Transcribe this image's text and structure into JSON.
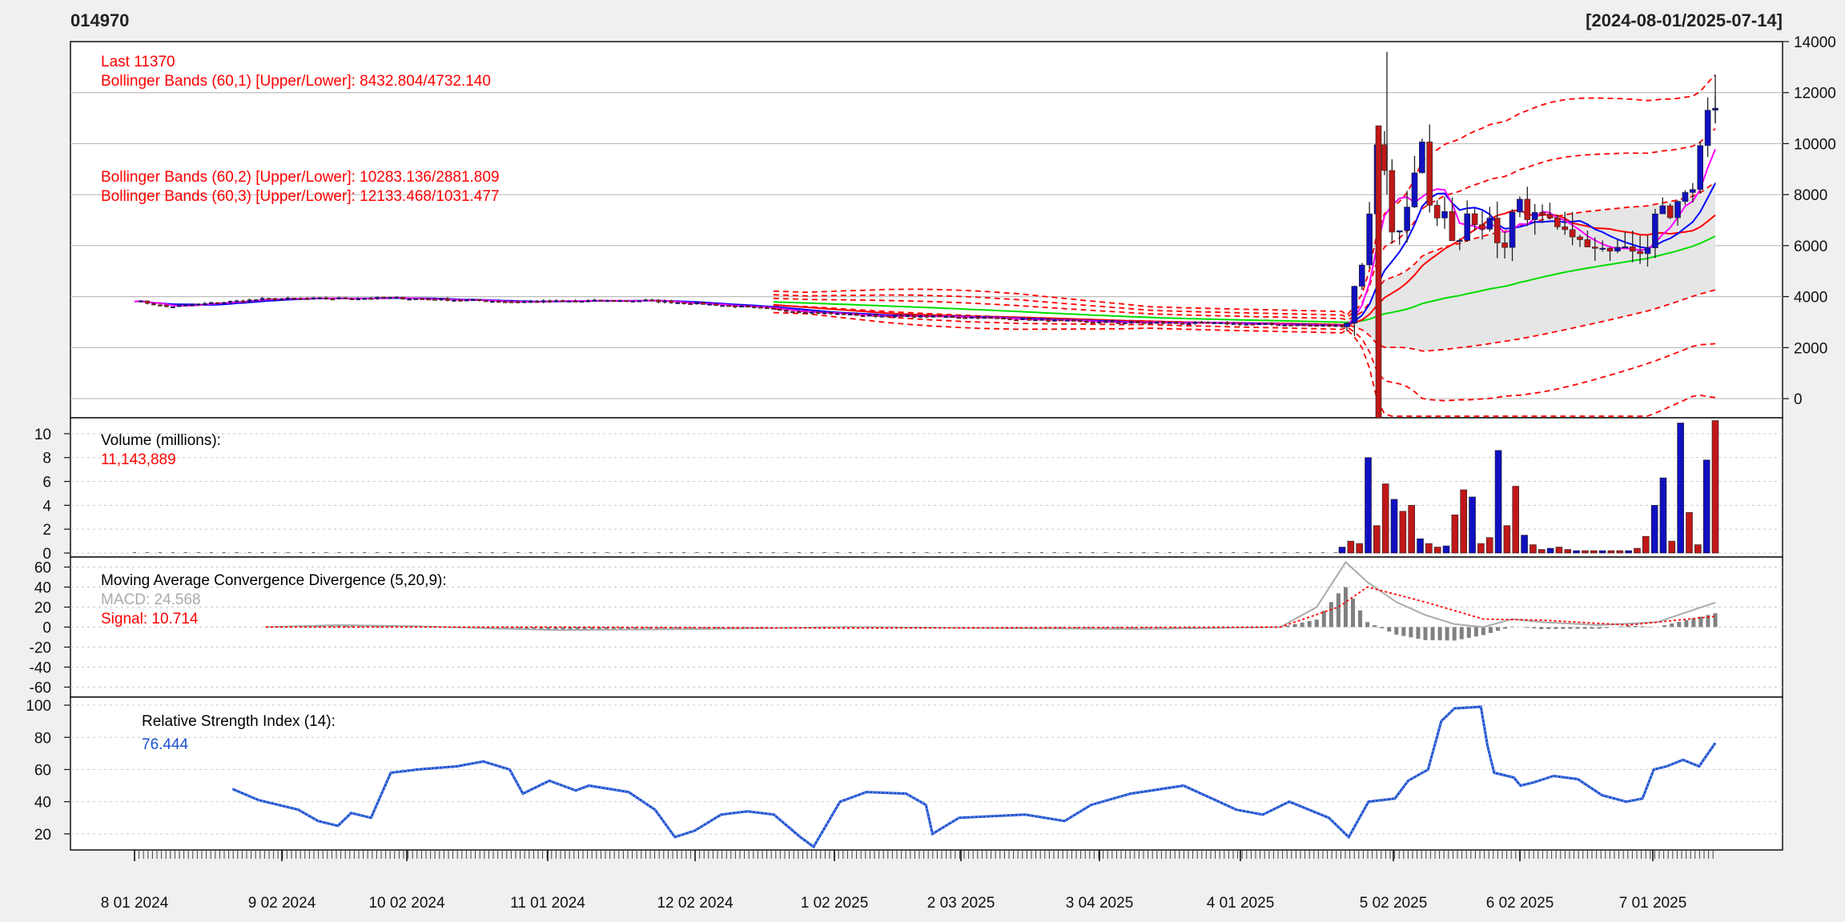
{
  "header": {
    "symbol": "014970",
    "date_range": "[2024-08-01/2025-07-14]"
  },
  "price_panel": {
    "last_label": "Last 11370",
    "bb1_label": "Bollinger Bands (60,1) [Upper/Lower]: 8432.804/4732.140",
    "bb2_label": "Bollinger Bands (60,2) [Upper/Lower]: 10283.136/2881.809",
    "bb3_label": "Bollinger Bands (60,3) [Upper/Lower]: 12133.468/1031.477"
  },
  "volume_panel": {
    "title": "Volume (millions):",
    "value": "11,143,889"
  },
  "macd_panel": {
    "title": "Moving Average Convergence Divergence (5,20,9):",
    "macd_label": "MACD: 24.568",
    "signal_label": "Signal: 10.714"
  },
  "rsi_panel": {
    "title": "Relative Strength Index (14):",
    "value": "76.444"
  },
  "colors": {
    "up": "#1010c0",
    "down": "#c01818",
    "band": "#ff0000",
    "ma_blue": "#0000ff",
    "ma_red": "#ff0000",
    "ma_green": "#00dd00",
    "ma_magenta": "#ff00ff",
    "macd": "#aaaaaa",
    "rsi": "#1a4fd0"
  },
  "chart_data": [
    {
      "type": "candlestick",
      "title": "014970",
      "ylim": [
        -500,
        14000
      ],
      "y_ticks": [
        "0",
        "2000",
        "4000",
        "6000",
        "8000",
        "10000",
        "12000",
        "14000"
      ],
      "x_tick_labels": [
        "8 01 2024",
        "9 02 2024",
        "10 02 2024",
        "11 01 2024",
        "12 02 2024",
        "1 02 2025",
        "2 03 2025",
        "3 04 2025",
        "4 01 2025",
        "5 02 2025",
        "6 02 2025",
        "7 01 2025"
      ],
      "approx_close": [
        {
          "date": "2024-08",
          "close": 3800
        },
        {
          "date": "2024-09",
          "close": 3950
        },
        {
          "date": "2024-10",
          "close": 3900
        },
        {
          "date": "2024-11",
          "close": 3750
        },
        {
          "date": "2024-12",
          "close": 3300
        },
        {
          "date": "2025-01",
          "close": 3200
        },
        {
          "date": "2025-02",
          "close": 3000
        },
        {
          "date": "2025-03",
          "close": 2950
        },
        {
          "date": "2025-04",
          "close": 2800
        },
        {
          "date": "2025-05",
          "close": 6500
        },
        {
          "date": "2025-06",
          "close": 7000
        },
        {
          "date": "2025-07",
          "close": 11370
        }
      ]
    },
    {
      "type": "bar",
      "title": "Volume (millions):",
      "ylim": [
        0,
        11
      ],
      "y_ticks": [
        "0",
        "2",
        "4",
        "6",
        "8",
        "10"
      ],
      "spike_values_millions": [
        0.5,
        1.0,
        0.8,
        8.0,
        2.3,
        5.8,
        4.5,
        3.5,
        4.0,
        1.2,
        0.8,
        0.5,
        0.6,
        3.2,
        5.3,
        4.7,
        0.8,
        1.3,
        8.6,
        2.3,
        5.6,
        1.5,
        0.7,
        0.3,
        0.4,
        0.5,
        0.3,
        0.2,
        0.2,
        0.2,
        0.2,
        0.2,
        0.2,
        0.2,
        0.4,
        1.4,
        4.0,
        6.3,
        1.0,
        10.9,
        3.4,
        0.7,
        7.8,
        11.1
      ]
    },
    {
      "type": "line",
      "title": "Moving Average Convergence Divergence (5,20,9):",
      "ylim": [
        -70,
        70
      ],
      "y_ticks": [
        "60",
        "40",
        "20",
        "0",
        "-20",
        "-40",
        "-60"
      ],
      "macd_points": [
        {
          "x": 0.0,
          "y": 0
        },
        {
          "x": 0.05,
          "y": 2
        },
        {
          "x": 0.1,
          "y": 1
        },
        {
          "x": 0.2,
          "y": -3
        },
        {
          "x": 0.3,
          "y": -2
        },
        {
          "x": 0.4,
          "y": 0
        },
        {
          "x": 0.5,
          "y": -1
        },
        {
          "x": 0.6,
          "y": -2
        },
        {
          "x": 0.7,
          "y": 0
        },
        {
          "x": 0.725,
          "y": 20
        },
        {
          "x": 0.745,
          "y": 65
        },
        {
          "x": 0.76,
          "y": 45
        },
        {
          "x": 0.78,
          "y": 25
        },
        {
          "x": 0.8,
          "y": 12
        },
        {
          "x": 0.82,
          "y": 3
        },
        {
          "x": 0.84,
          "y": 0
        },
        {
          "x": 0.86,
          "y": 8
        },
        {
          "x": 0.88,
          "y": 5
        },
        {
          "x": 0.92,
          "y": 2
        },
        {
          "x": 0.96,
          "y": 5
        },
        {
          "x": 1.0,
          "y": 24.568
        }
      ],
      "signal_points": [
        {
          "x": 0.0,
          "y": 0
        },
        {
          "x": 0.2,
          "y": 0
        },
        {
          "x": 0.4,
          "y": -1
        },
        {
          "x": 0.7,
          "y": 0
        },
        {
          "x": 0.74,
          "y": 20
        },
        {
          "x": 0.76,
          "y": 40
        },
        {
          "x": 0.8,
          "y": 25
        },
        {
          "x": 0.84,
          "y": 8
        },
        {
          "x": 0.88,
          "y": 7
        },
        {
          "x": 0.94,
          "y": 2
        },
        {
          "x": 1.0,
          "y": 10.714
        }
      ]
    },
    {
      "type": "line",
      "title": "Relative Strength Index (14):",
      "ylim": [
        10,
        105
      ],
      "y_ticks": [
        "20",
        "40",
        "60",
        "80",
        "100"
      ],
      "rsi_points": [
        {
          "x": 0.0,
          "y": 48
        },
        {
          "x": 0.02,
          "y": 41
        },
        {
          "x": 0.05,
          "y": 35
        },
        {
          "x": 0.065,
          "y": 28
        },
        {
          "x": 0.08,
          "y": 25
        },
        {
          "x": 0.09,
          "y": 33
        },
        {
          "x": 0.105,
          "y": 30
        },
        {
          "x": 0.12,
          "y": 58
        },
        {
          "x": 0.14,
          "y": 60
        },
        {
          "x": 0.17,
          "y": 62
        },
        {
          "x": 0.19,
          "y": 65
        },
        {
          "x": 0.21,
          "y": 60
        },
        {
          "x": 0.22,
          "y": 45
        },
        {
          "x": 0.24,
          "y": 53
        },
        {
          "x": 0.26,
          "y": 47
        },
        {
          "x": 0.27,
          "y": 50
        },
        {
          "x": 0.3,
          "y": 46
        },
        {
          "x": 0.32,
          "y": 35
        },
        {
          "x": 0.335,
          "y": 18
        },
        {
          "x": 0.35,
          "y": 22
        },
        {
          "x": 0.37,
          "y": 32
        },
        {
          "x": 0.39,
          "y": 34
        },
        {
          "x": 0.41,
          "y": 32
        },
        {
          "x": 0.43,
          "y": 18
        },
        {
          "x": 0.44,
          "y": 12
        },
        {
          "x": 0.46,
          "y": 40
        },
        {
          "x": 0.48,
          "y": 46
        },
        {
          "x": 0.51,
          "y": 45
        },
        {
          "x": 0.525,
          "y": 38
        },
        {
          "x": 0.53,
          "y": 20
        },
        {
          "x": 0.55,
          "y": 30
        },
        {
          "x": 0.6,
          "y": 32
        },
        {
          "x": 0.63,
          "y": 28
        },
        {
          "x": 0.65,
          "y": 38
        },
        {
          "x": 0.68,
          "y": 45
        },
        {
          "x": 0.72,
          "y": 50
        },
        {
          "x": 0.76,
          "y": 35
        },
        {
          "x": 0.78,
          "y": 32
        },
        {
          "x": 0.8,
          "y": 40
        },
        {
          "x": 0.83,
          "y": 30
        },
        {
          "x": 0.845,
          "y": 18
        },
        {
          "x": 0.86,
          "y": 40
        },
        {
          "x": 0.88,
          "y": 42
        },
        {
          "x": 0.89,
          "y": 53
        },
        {
          "x": 0.905,
          "y": 60
        },
        {
          "x": 0.915,
          "y": 90
        },
        {
          "x": 0.925,
          "y": 98
        },
        {
          "x": 0.945,
          "y": 99
        },
        {
          "x": 0.95,
          "y": 75
        },
        {
          "x": 0.955,
          "y": 58
        },
        {
          "x": 0.97,
          "y": 55
        },
        {
          "x": 0.975,
          "y": 50
        },
        {
          "x": 0.985,
          "y": 52
        },
        {
          "x": 1.0,
          "y": 56
        }
      ],
      "rsi_points_tail": [
        {
          "x": 0.0,
          "y": 56
        },
        {
          "x": 0.15,
          "y": 54
        },
        {
          "x": 0.3,
          "y": 44
        },
        {
          "x": 0.45,
          "y": 40
        },
        {
          "x": 0.55,
          "y": 42
        },
        {
          "x": 0.62,
          "y": 60
        },
        {
          "x": 0.7,
          "y": 62
        },
        {
          "x": 0.8,
          "y": 66
        },
        {
          "x": 0.9,
          "y": 62
        },
        {
          "x": 1.0,
          "y": 76.444
        }
      ]
    }
  ]
}
